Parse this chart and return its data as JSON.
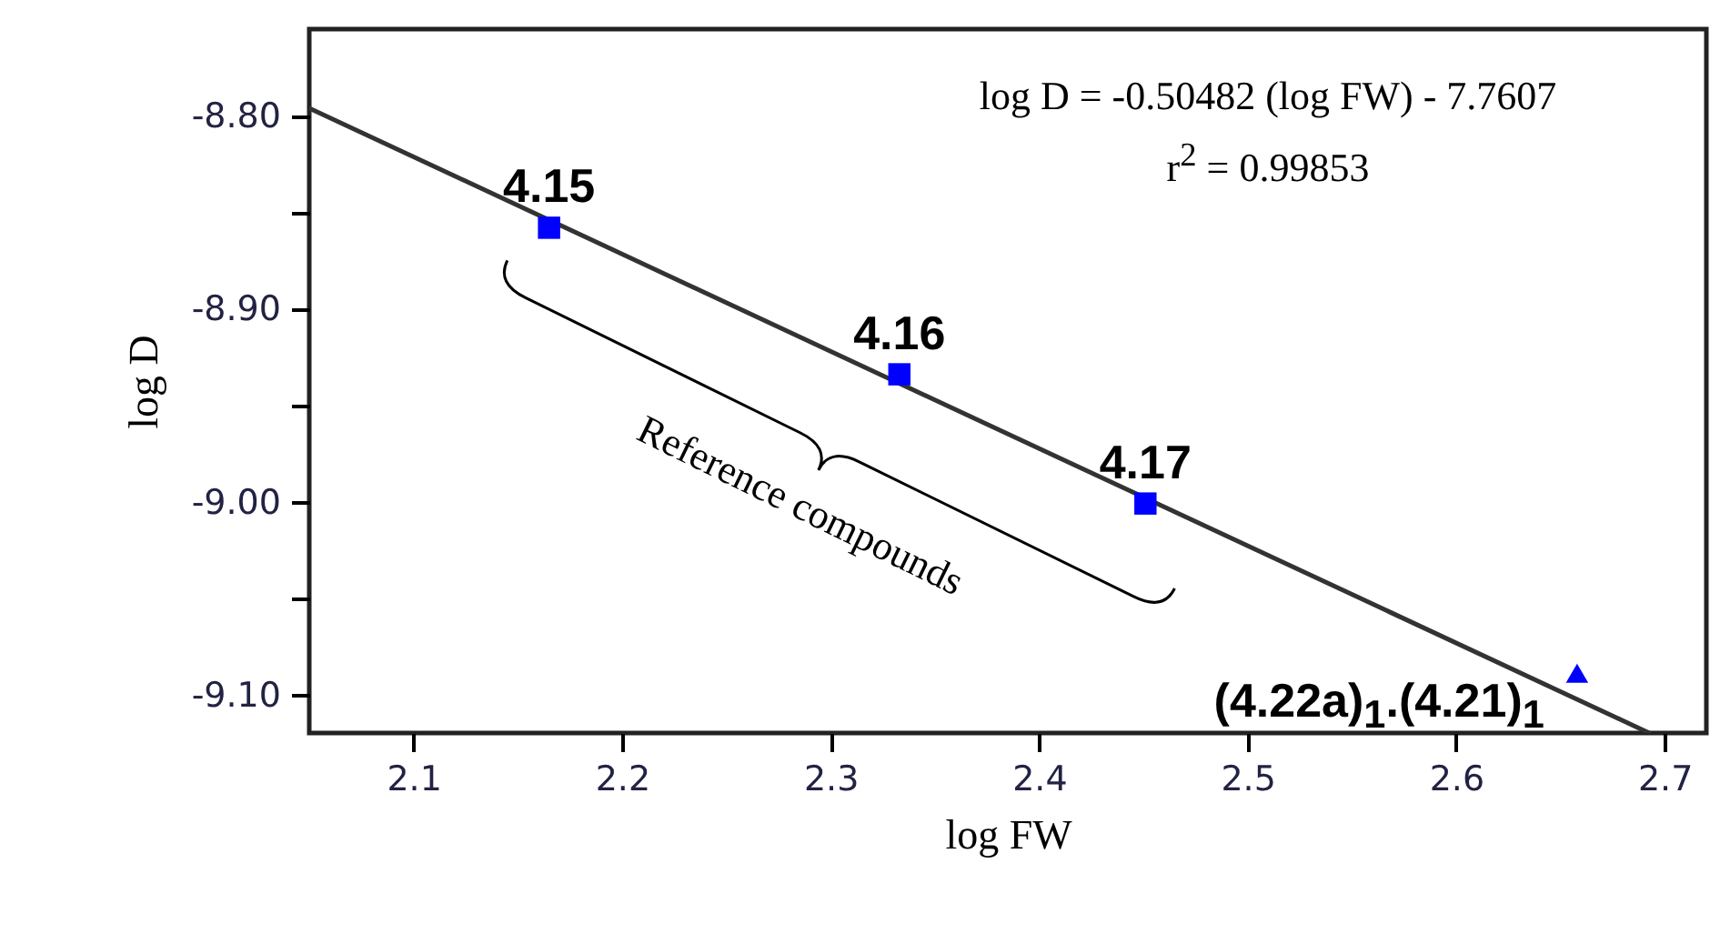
{
  "chart_data": {
    "type": "scatter",
    "xlabel": "log FW",
    "ylabel": "log D",
    "xlim": [
      2.05,
      2.72
    ],
    "ylim": [
      -9.12,
      -8.755
    ],
    "xticks": [
      2.1,
      2.2,
      2.3,
      2.4,
      2.5,
      2.6,
      2.7
    ],
    "yticks": [
      {
        "value": -8.8,
        "label": "-8.80"
      },
      {
        "value": -8.85,
        "label": null
      },
      {
        "value": -8.9,
        "label": "-8.90"
      },
      {
        "value": -8.95,
        "label": null
      },
      {
        "value": -9.0,
        "label": "-9.00"
      },
      {
        "value": -9.05,
        "label": null
      },
      {
        "value": -9.1,
        "label": "-9.10"
      }
    ],
    "series": [
      {
        "type": "line",
        "color": "#333333",
        "line_style": "solid",
        "marker": "none",
        "x": [
          2.05,
          2.6926
        ],
        "values": [
          -8.796,
          -9.12
        ]
      },
      {
        "type": "scatter",
        "color": "#0000ff",
        "marker": "square",
        "x": [
          2.165,
          2.333,
          2.451
        ],
        "values": [
          -8.858,
          -8.934,
          -9.001
        ]
      },
      {
        "type": "scatter",
        "color": "#0000ff",
        "marker": "triangle",
        "x": [
          2.658
        ],
        "values": [
          -9.089
        ]
      }
    ],
    "annotations": [
      {
        "text": "4.15",
        "x": 2.165,
        "y": -8.858
      },
      {
        "text": "4.16",
        "x": 2.333,
        "y": -8.934
      },
      {
        "text": "4.17",
        "x": 2.451,
        "y": -9.001
      },
      {
        "text": "(4.22a)$_{1}$.(4.21)$_{1}$",
        "x": 2.658,
        "y": -9.089
      },
      "log D = -0.50482 (log FW) - 7.7607",
      "r$^{2}$ = 0.99853",
      "Reference compounds"
    ]
  }
}
